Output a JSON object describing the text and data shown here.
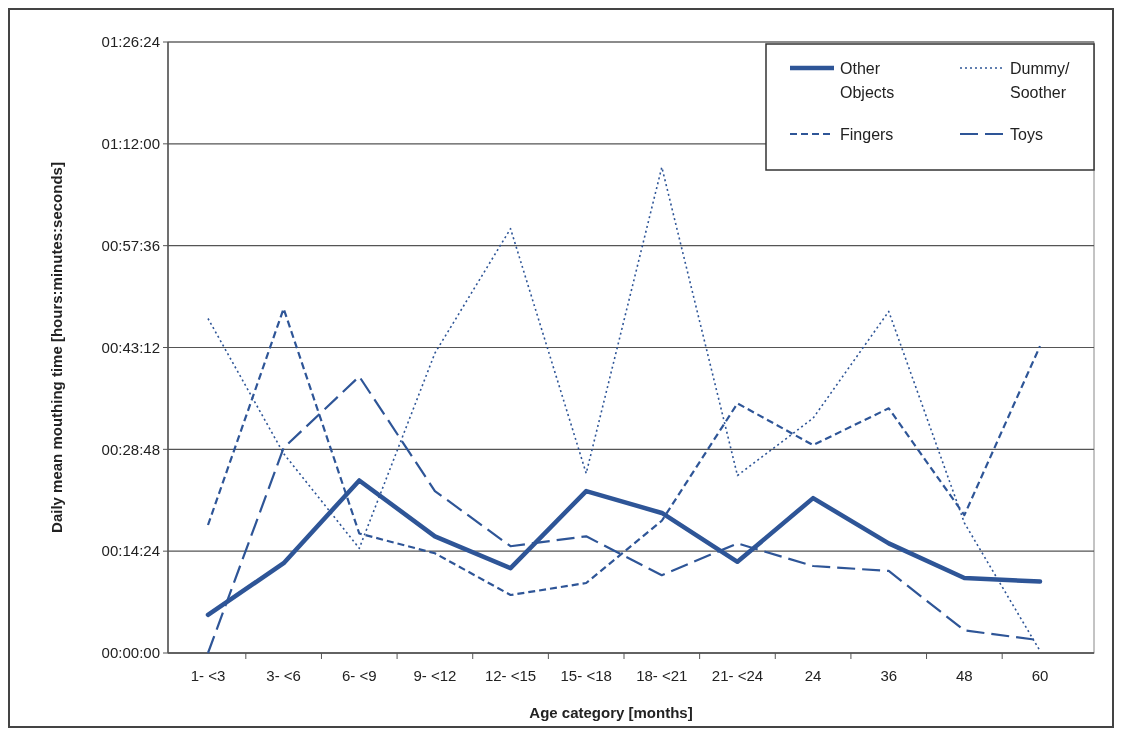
{
  "chart_data": {
    "type": "line",
    "xlabel": "Age category [months]",
    "ylabel": "Daily mean mouthing time [hours:minutes:seconds]",
    "categories": [
      "1- <3",
      "3- <6",
      "6- <9",
      "9- <12",
      "12- <15",
      "15- <18",
      "18- <21",
      "21- <24",
      "24",
      "36",
      "48",
      "60"
    ],
    "series": [
      {
        "name": "Other Objects",
        "color": "#2e5597",
        "line_style": "solid",
        "values": [
          5.4,
          12.7,
          24.4,
          16.5,
          12.0,
          22.9,
          19.8,
          12.9,
          21.9,
          15.5,
          10.6,
          10.1
        ]
      },
      {
        "name": "Dummy/ Soother",
        "color": "#2e5597",
        "line_style": "dotted",
        "values": [
          47.3,
          28.2,
          14.8,
          42.4,
          60.0,
          25.4,
          68.7,
          25.1,
          33.2,
          48.3,
          18.4,
          0.3
        ]
      },
      {
        "name": "Fingers",
        "color": "#2e5597",
        "line_style": "dashed",
        "values": [
          18.1,
          48.7,
          16.9,
          14.1,
          8.2,
          9.9,
          18.7,
          35.3,
          29.4,
          34.6,
          19.5,
          43.4
        ]
      },
      {
        "name": "Toys",
        "color": "#2e5597",
        "line_style": "longdash",
        "values": [
          0,
          29.0,
          39.1,
          22.9,
          15.1,
          16.5,
          11.0,
          15.5,
          12.3,
          11.6,
          3.2,
          1.8
        ]
      }
    ],
    "ylim": [
      0,
      86.4
    ],
    "yticks": [
      {
        "value": 0,
        "label": "00:00:00"
      },
      {
        "value": 14.4,
        "label": "00:14:24"
      },
      {
        "value": 28.8,
        "label": "00:28:48"
      },
      {
        "value": 43.2,
        "label": "00:43:12"
      },
      {
        "value": 57.6,
        "label": "00:57:36"
      },
      {
        "value": 72,
        "label": "01:12:00"
      },
      {
        "value": 86.4,
        "label": "01:26:24"
      }
    ],
    "grid": "y",
    "legend": "top right",
    "marker": "none"
  }
}
